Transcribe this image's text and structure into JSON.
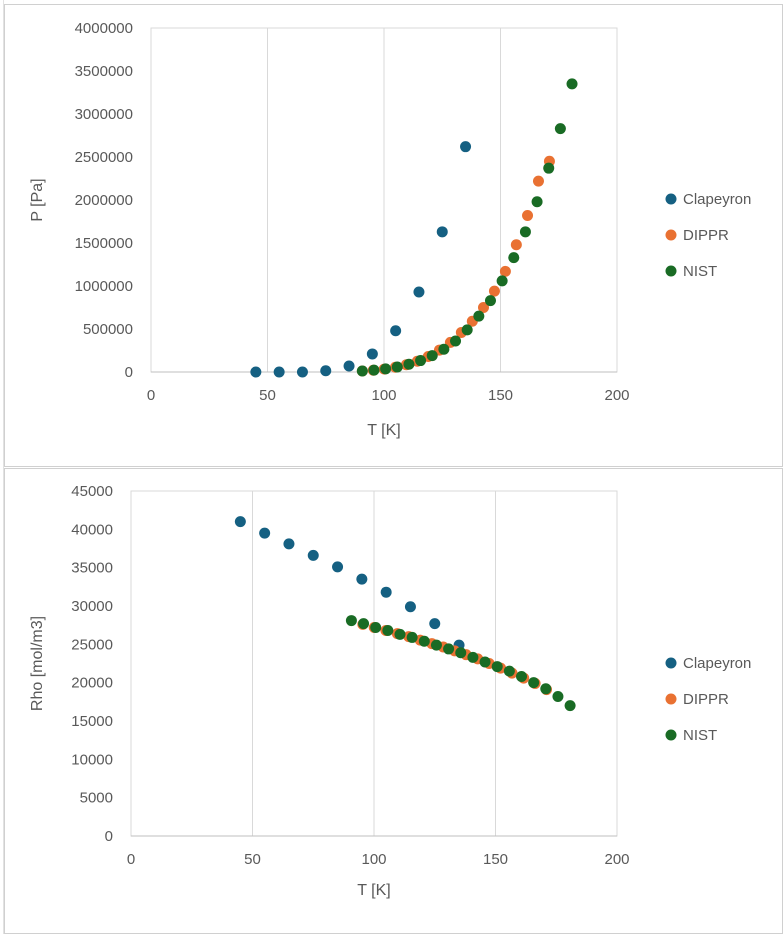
{
  "charts": [
    {
      "type": "scatter",
      "xlabel": "T [K]",
      "ylabel": "P [Pa]",
      "xlim": [
        0,
        200
      ],
      "ylim": [
        0,
        4000000
      ],
      "xticks": [
        0,
        50,
        100,
        150,
        200
      ],
      "yticks": [
        0,
        500000,
        1000000,
        1500000,
        2000000,
        2500000,
        3000000,
        3500000,
        4000000
      ],
      "grid": "vertical",
      "legend": "right",
      "series": [
        {
          "name": "Clapeyron",
          "color": "#156082",
          "x": [
            45,
            55,
            65,
            75,
            85,
            95,
            105,
            115,
            125,
            135
          ],
          "y": [
            0,
            0,
            0,
            15000,
            70000,
            210000,
            480000,
            930000,
            1630000,
            2620000
          ]
        },
        {
          "name": "DIPPR",
          "color": "#E97132",
          "x": [
            90.7,
            95.4,
            100.1,
            104.9,
            109.6,
            114.3,
            119,
            123.8,
            128.5,
            133.2,
            137.9,
            142.7,
            147.4,
            152.1,
            156.8,
            161.6,
            166.3,
            171
          ],
          "y": [
            12000,
            20000,
            34000,
            55000,
            84000,
            125000,
            180000,
            255000,
            345000,
            460000,
            590000,
            750000,
            940000,
            1170000,
            1480000,
            1820000,
            2220000,
            2450000
          ]
        },
        {
          "name": "NIST",
          "color": "#196B24",
          "x": [
            90.7,
            95.7,
            100.7,
            105.7,
            110.7,
            115.7,
            120.7,
            125.7,
            130.7,
            135.7,
            140.7,
            145.7,
            150.7,
            155.7,
            160.7,
            165.7,
            170.7,
            175.7,
            180.7
          ],
          "y": [
            12000,
            22000,
            36000,
            58000,
            90000,
            133000,
            190000,
            265000,
            360000,
            490000,
            650000,
            830000,
            1060000,
            1330000,
            1630000,
            1980000,
            2370000,
            2830000,
            3350000
          ]
        }
      ]
    },
    {
      "type": "scatter",
      "xlabel": "T [K]",
      "ylabel": "Rho [mol/m3]",
      "xlim": [
        0,
        200
      ],
      "ylim": [
        0,
        45000
      ],
      "xticks": [
        0,
        50,
        100,
        150,
        200
      ],
      "yticks": [
        0,
        5000,
        10000,
        15000,
        20000,
        25000,
        30000,
        35000,
        40000,
        45000
      ],
      "grid": "vertical",
      "legend": "right",
      "series": [
        {
          "name": "Clapeyron",
          "color": "#156082",
          "x": [
            45,
            55,
            65,
            75,
            85,
            95,
            105,
            115,
            125,
            135
          ],
          "y": [
            41000,
            39500,
            38100,
            36600,
            35100,
            33500,
            31800,
            29900,
            27700,
            24900
          ]
        },
        {
          "name": "DIPPR",
          "color": "#E97132",
          "x": [
            95.4,
            100.1,
            104.9,
            109.6,
            114.3,
            119,
            123.8,
            128.5,
            133.2,
            137.9,
            142.7,
            147.4,
            152.1,
            156.8,
            161.6,
            166.3,
            171
          ],
          "y": [
            27600,
            27200,
            26800,
            26400,
            26000,
            25550,
            25100,
            24650,
            24150,
            23650,
            23100,
            22500,
            21900,
            21250,
            20600,
            19900,
            19100
          ]
        },
        {
          "name": "NIST",
          "color": "#196B24",
          "x": [
            90.7,
            95.7,
            100.7,
            105.7,
            110.7,
            115.7,
            120.7,
            125.7,
            130.7,
            135.7,
            140.7,
            145.7,
            150.7,
            155.7,
            160.7,
            165.7,
            170.7,
            175.7,
            180.7
          ],
          "y": [
            28100,
            27700,
            27200,
            26800,
            26300,
            25900,
            25400,
            24900,
            24400,
            23900,
            23300,
            22700,
            22100,
            21500,
            20800,
            20000,
            19200,
            18200,
            17000
          ]
        }
      ]
    }
  ]
}
